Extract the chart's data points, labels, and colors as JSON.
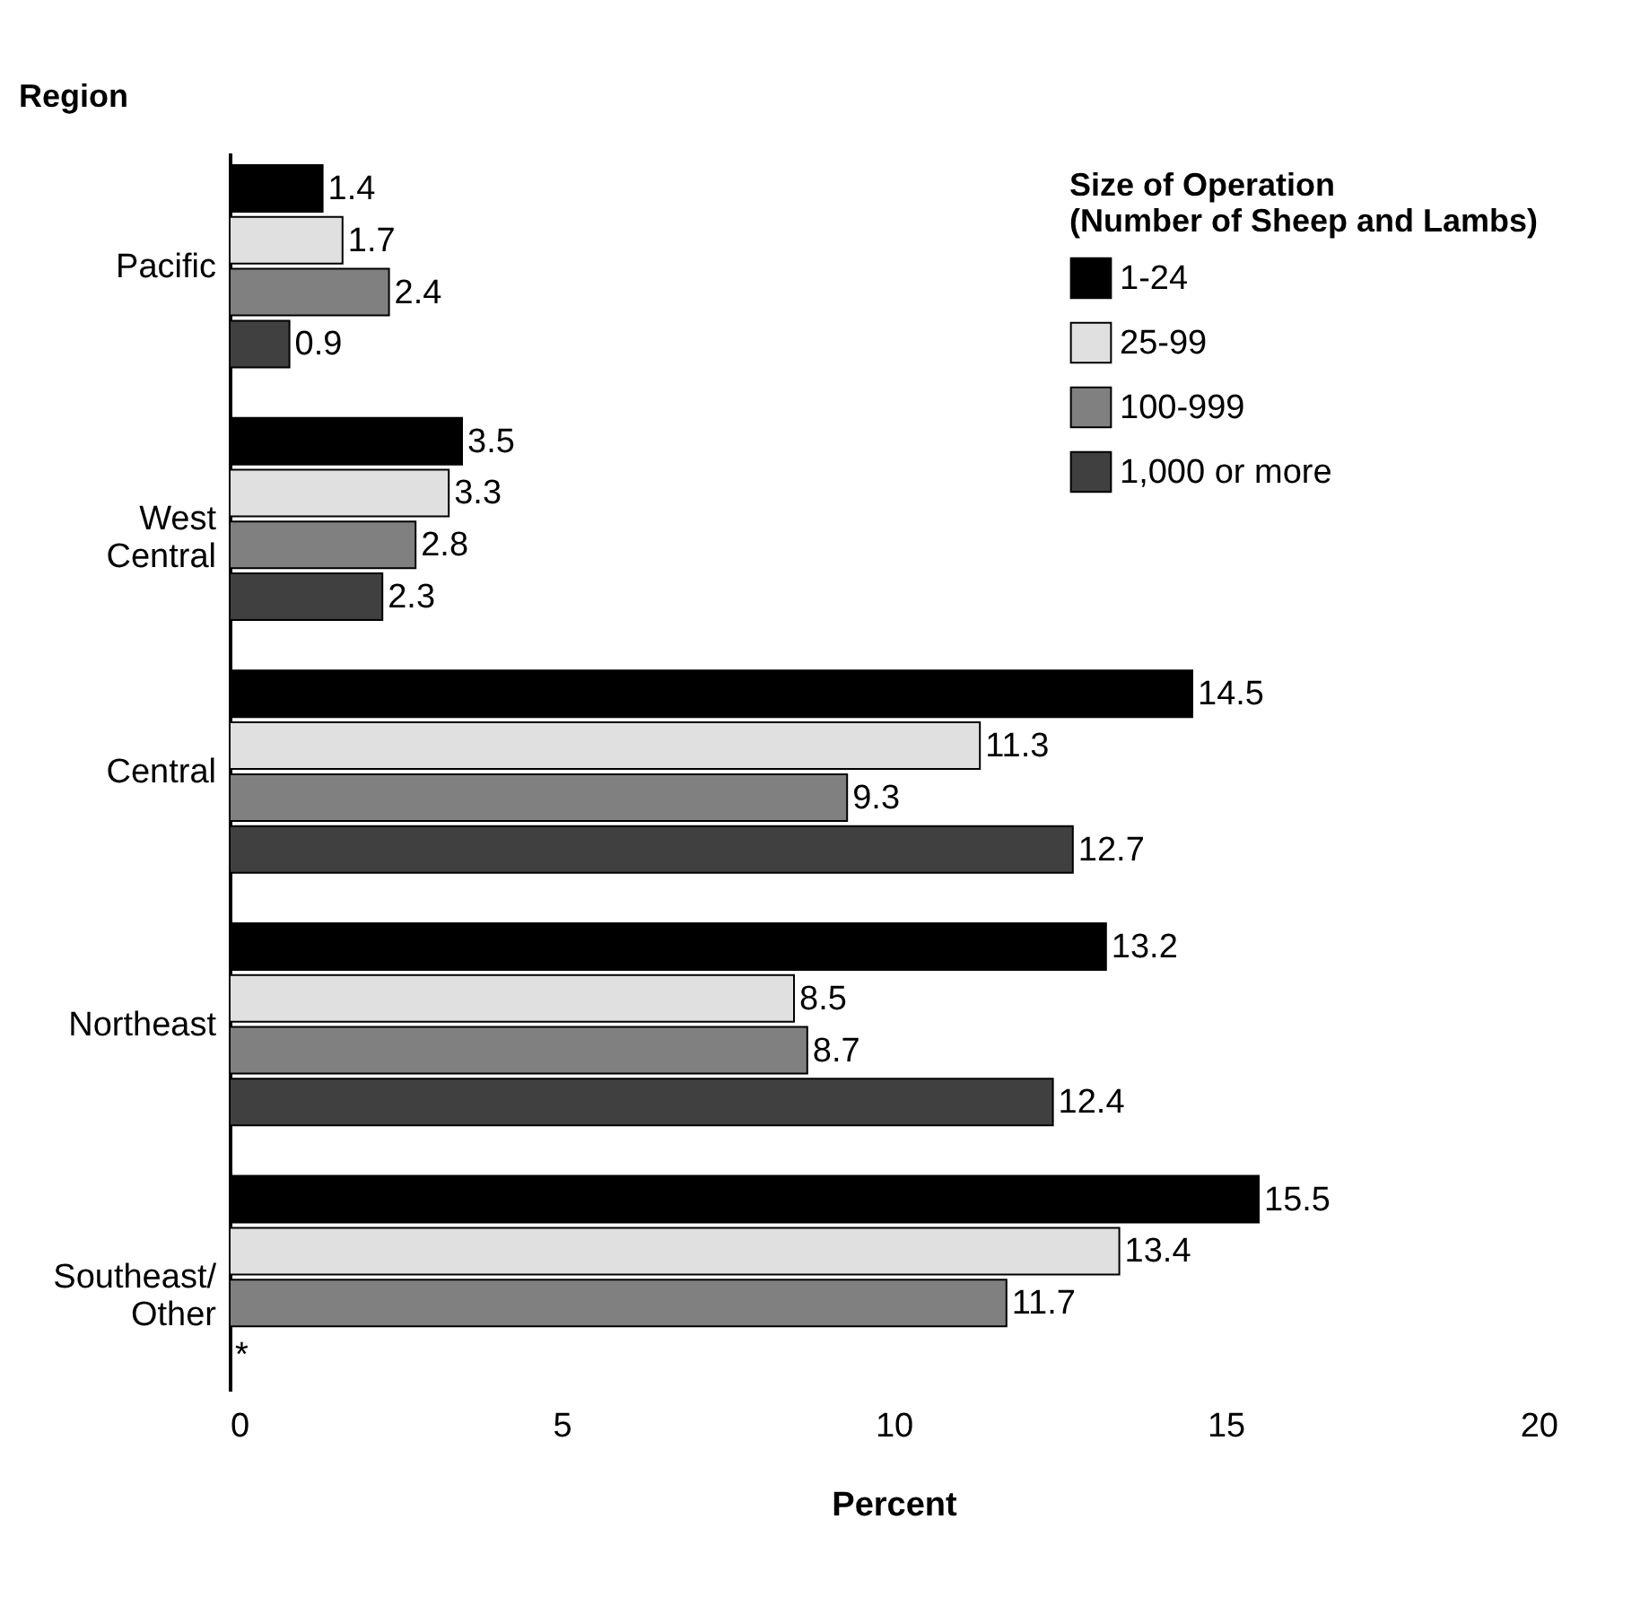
{
  "chart_data": {
    "type": "bar",
    "orientation": "horizontal",
    "ylabel": "Region",
    "xlabel": "Percent",
    "legend_title": "Size of Operation\n(Number of Sheep and Lambs)",
    "categories": [
      "Pacific",
      "West\nCentral",
      "Central",
      "Northeast",
      "Southeast/\nOther"
    ],
    "series": [
      {
        "name": "1-24",
        "color": "#000000",
        "values": [
          1.4,
          3.5,
          14.5,
          13.2,
          15.5
        ]
      },
      {
        "name": "25-99",
        "color": "#e0e0e0",
        "values": [
          1.7,
          3.3,
          11.3,
          8.5,
          13.4
        ]
      },
      {
        "name": "100-999",
        "color": "#808080",
        "values": [
          2.4,
          2.8,
          9.3,
          8.7,
          11.7
        ]
      },
      {
        "name": "1,000 or more",
        "color": "#404040",
        "values": [
          0.9,
          2.3,
          12.7,
          12.4,
          null
        ],
        "value_labels": [
          "0.9",
          "2.3",
          "12.7",
          "12.4",
          "*"
        ]
      }
    ],
    "xlim": [
      0,
      20
    ],
    "xticks": [
      0,
      5,
      10,
      15,
      20
    ],
    "data_labels": true,
    "grid": false,
    "legend": "top right"
  }
}
